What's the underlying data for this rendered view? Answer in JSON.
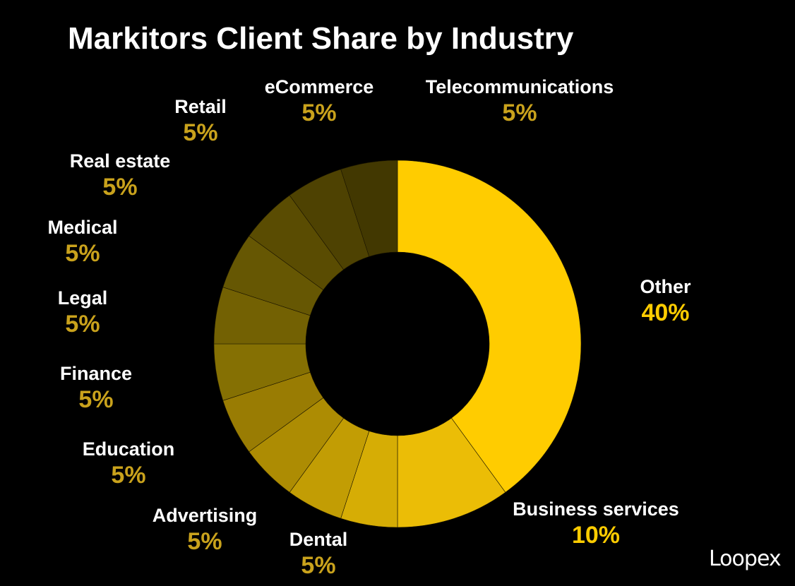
{
  "title": "Markitors Client Share by Industry",
  "brand": "Loopex",
  "chart_data": {
    "type": "pie",
    "title": "Markitors Client Share by Industry",
    "series": [
      {
        "values": [
          40,
          10,
          5,
          5,
          5,
          5,
          5,
          5,
          5,
          5,
          5,
          5
        ]
      }
    ],
    "categories": [
      "Other",
      "Business services",
      "Dental",
      "Advertising",
      "Education",
      "Finance",
      "Legal",
      "Medical",
      "Real estate",
      "Retail",
      "eCommerce",
      "Telecommunications"
    ],
    "labels": [
      {
        "name": "Other",
        "pct": "40%"
      },
      {
        "name": "Business services",
        "pct": "10%"
      },
      {
        "name": "Dental",
        "pct": "5%"
      },
      {
        "name": "Advertising",
        "pct": "5%"
      },
      {
        "name": "Education",
        "pct": "5%"
      },
      {
        "name": "Finance",
        "pct": "5%"
      },
      {
        "name": "Legal",
        "pct": "5%"
      },
      {
        "name": "Medical",
        "pct": "5%"
      },
      {
        "name": "Real estate",
        "pct": "5%"
      },
      {
        "name": "Retail",
        "pct": "5%"
      },
      {
        "name": "eCommerce",
        "pct": "5%"
      },
      {
        "name": "Telecommunications",
        "pct": "5%"
      }
    ],
    "colors": [
      "#FFCC00",
      "#EBBD06",
      "#D6AD05",
      "#C29D04",
      "#AD8C03",
      "#997C03",
      "#857003",
      "#736103",
      "#665703",
      "#5A4C02",
      "#4E4202",
      "#423801"
    ],
    "pct_color_main": "#FFCC00",
    "pct_color_small": "#C9A21C",
    "background": "#000000"
  }
}
